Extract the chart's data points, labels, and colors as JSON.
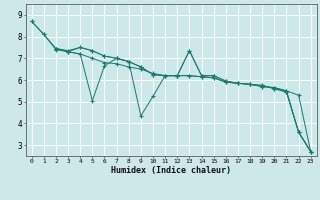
{
  "xlabel": "Humidex (Indice chaleur)",
  "background_color": "#cce8e8",
  "grid_color": "#ffffff",
  "line_color": "#1a7a6e",
  "xlim": [
    -0.5,
    23.5
  ],
  "ylim": [
    2.5,
    9.5
  ],
  "xticks": [
    0,
    1,
    2,
    3,
    4,
    5,
    6,
    7,
    8,
    9,
    10,
    11,
    12,
    13,
    14,
    15,
    16,
    17,
    18,
    19,
    20,
    21,
    22,
    23
  ],
  "yticks": [
    3,
    4,
    5,
    6,
    7,
    8,
    9
  ],
  "lines": [
    {
      "x": [
        0,
        1,
        2,
        3,
        4,
        5,
        6,
        7,
        8,
        9,
        10,
        11,
        12,
        13,
        14,
        15,
        16,
        17,
        18,
        19,
        20,
        21,
        22,
        23
      ],
      "y": [
        8.7,
        8.1,
        7.4,
        7.3,
        7.2,
        7.0,
        6.8,
        6.75,
        6.6,
        6.5,
        6.3,
        6.2,
        6.2,
        6.2,
        6.15,
        6.1,
        5.9,
        5.85,
        5.8,
        5.7,
        5.65,
        5.5,
        5.3,
        2.7
      ]
    },
    {
      "x": [
        0,
        1,
        2,
        3,
        4,
        5,
        6,
        7,
        8,
        9,
        10,
        11,
        12,
        13,
        14,
        15,
        16,
        17,
        18,
        19,
        20,
        21,
        22,
        23
      ],
      "y": [
        8.7,
        8.1,
        7.45,
        7.35,
        7.5,
        7.35,
        7.1,
        7.0,
        6.85,
        6.6,
        6.25,
        6.2,
        6.2,
        7.35,
        6.2,
        6.2,
        5.95,
        5.85,
        5.8,
        5.75,
        5.6,
        5.45,
        3.6,
        2.7
      ]
    },
    {
      "x": [
        2,
        3,
        4,
        5,
        6,
        7,
        8,
        9,
        10,
        11,
        12,
        13,
        14,
        15,
        16,
        17,
        18,
        19,
        20,
        21,
        22,
        23
      ],
      "y": [
        7.45,
        7.3,
        7.2,
        5.05,
        6.65,
        7.0,
        6.85,
        4.35,
        5.25,
        6.2,
        6.2,
        6.2,
        6.15,
        6.1,
        5.9,
        5.85,
        5.8,
        5.7,
        5.65,
        5.5,
        3.6,
        2.7
      ]
    },
    {
      "x": [
        2,
        3,
        4,
        5,
        6,
        7,
        8,
        9,
        10,
        11,
        12,
        13,
        14,
        15,
        16,
        17,
        18,
        19,
        20,
        21,
        22,
        23
      ],
      "y": [
        7.45,
        7.3,
        7.5,
        7.35,
        7.1,
        7.0,
        6.85,
        6.6,
        6.25,
        6.2,
        6.2,
        7.35,
        6.2,
        6.2,
        5.95,
        5.85,
        5.8,
        5.75,
        5.6,
        5.45,
        3.6,
        2.7
      ]
    }
  ]
}
